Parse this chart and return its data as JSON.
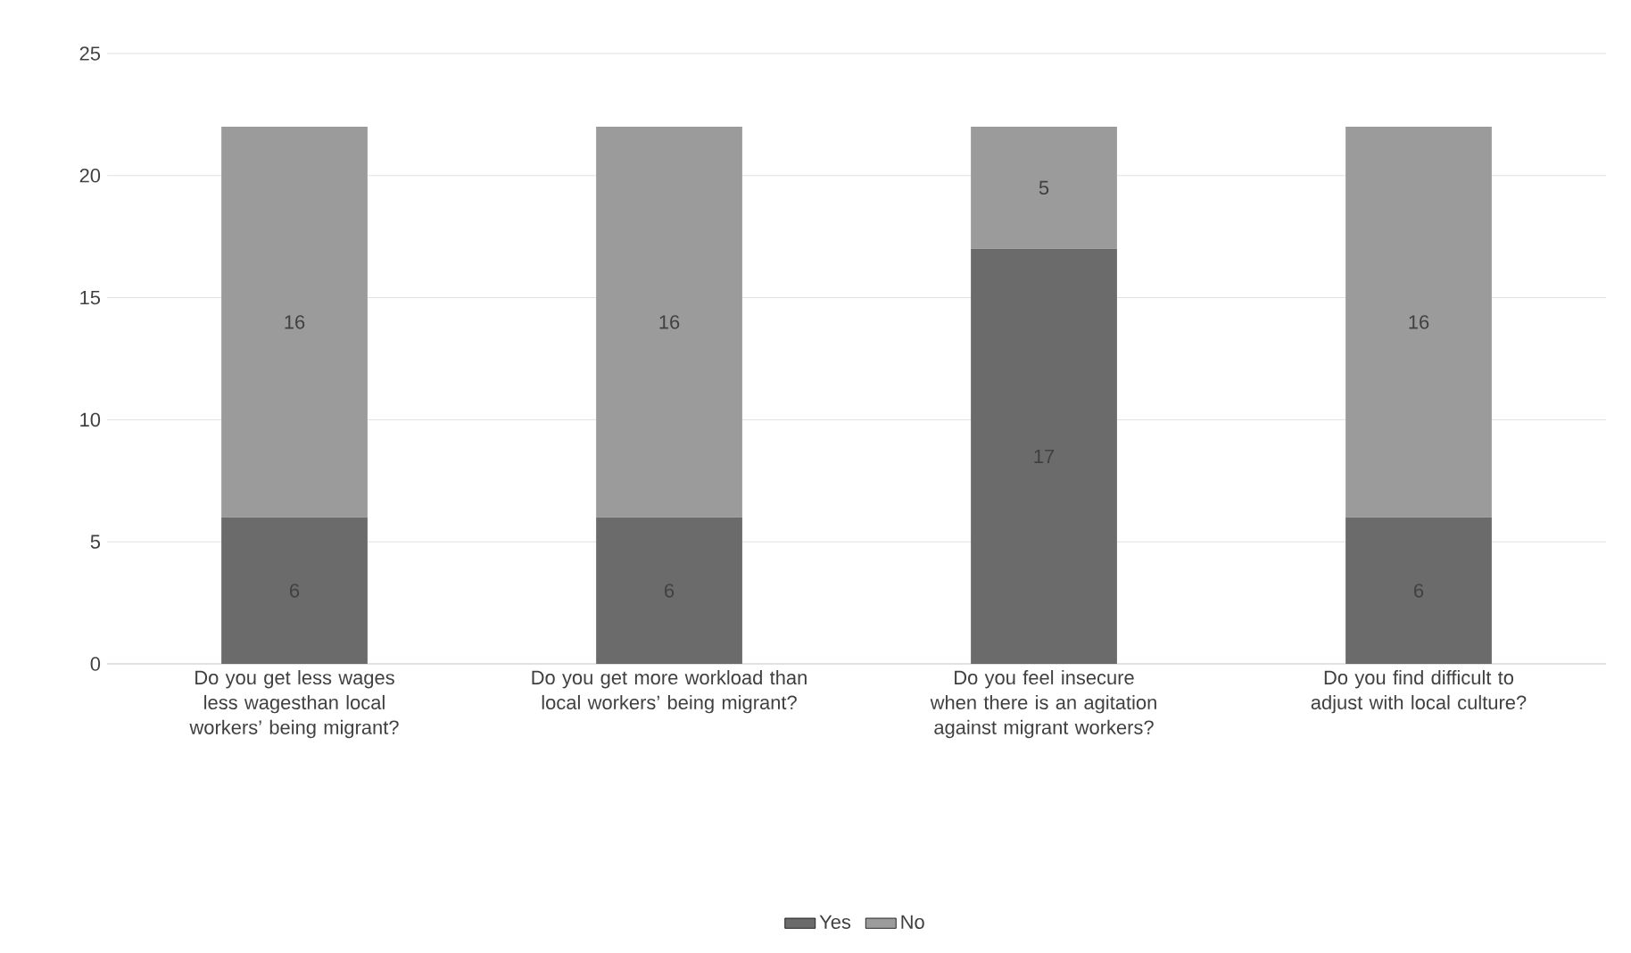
{
  "chart_data": {
    "type": "bar",
    "stacked": true,
    "categories": [
      "Do you get less wages less wagesthan local workers’ being migrant?",
      "Do you get more workload than local workers’ being migrant?",
      "Do you feel insecure when there is an agitation against migrant workers?",
      "Do you find difficult to adjust with local culture?"
    ],
    "series": [
      {
        "name": "Yes",
        "color": "#6b6b6b",
        "values": [
          6,
          6,
          17,
          6
        ]
      },
      {
        "name": "No",
        "color": "#9b9b9b",
        "values": [
          16,
          16,
          5,
          16
        ]
      }
    ],
    "ylim": [
      0,
      25
    ],
    "yticks": [
      0,
      5,
      10,
      15,
      20,
      25
    ],
    "grid": "y",
    "legend": "bottom",
    "data_labels": true
  }
}
